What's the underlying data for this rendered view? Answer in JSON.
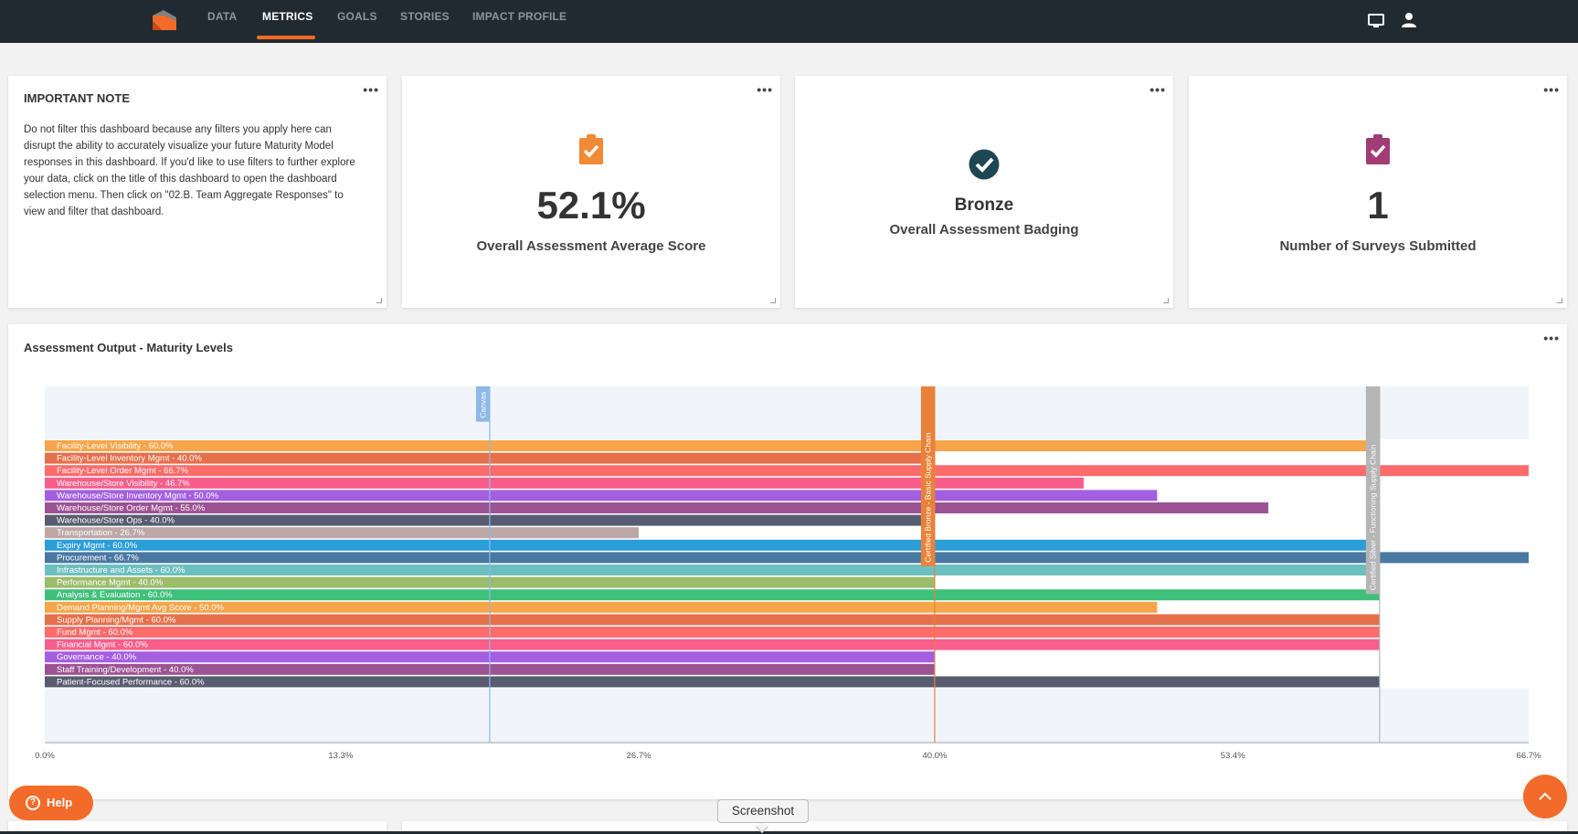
{
  "nav": {
    "tabs": [
      {
        "label": "DATA",
        "active": false
      },
      {
        "label": "METRICS",
        "active": true
      },
      {
        "label": "GOALS",
        "active": false
      },
      {
        "label": "STORIES",
        "active": false
      },
      {
        "label": "IMPACT PROFILE",
        "active": false
      }
    ],
    "icons": [
      "monitor-icon",
      "user-icon"
    ]
  },
  "note_card": {
    "title": "IMPORTANT NOTE",
    "body": "Do not filter this dashboard because any filters you apply here can disrupt the ability to accurately visualize your future Maturity Model responses in this dashboard. If you'd like to use filters to further explore your data, click on the title of this dashboard to open the dashboard selection menu. Then click on \"02.B. Team Aggregate Responses\" to view and filter that dashboard."
  },
  "kpis": [
    {
      "value": "52.1%",
      "label": "Overall Assessment Average Score",
      "icon": "clipboard-check-icon",
      "color": "#f08a34"
    },
    {
      "value": "Bronze",
      "label": "Overall Assessment Badging",
      "icon": "check-circle-icon",
      "color": "#1f4654"
    },
    {
      "value": "1",
      "label": "Number of Surveys Submitted",
      "icon": "clipboard-check-icon",
      "color": "#a13d74"
    }
  ],
  "chart_card": {
    "title": "Assessment Output - Maturity Levels"
  },
  "chart_data": {
    "type": "bar",
    "orientation": "horizontal",
    "x_axis": {
      "min": 0,
      "max": 66.7,
      "ticks": [
        "0.0%",
        "13.3%",
        "26.7%",
        "40.0%",
        "53.4%",
        "66.7%"
      ],
      "tick_values": [
        0,
        13.3,
        26.7,
        40.0,
        53.4,
        66.7
      ]
    },
    "reference_lines": [
      {
        "label": "Canvas",
        "value": 20,
        "color": "#8db8e8"
      },
      {
        "label": "Certified Bronze - Basic Supply Chain",
        "value": 40,
        "color": "#e8823a"
      },
      {
        "label": "Certified Silver - Functioning Supply Chain",
        "value": 60,
        "color": "#b5b5b5"
      }
    ],
    "bars": [
      {
        "label": "Facility-Level Visibility - 60.0%",
        "value": 60.0,
        "color": "#f7a54a"
      },
      {
        "label": "Facility-Level Inventory Mgmt - 40.0%",
        "value": 40.0,
        "color": "#e5704b"
      },
      {
        "label": "Facility-Level Order Mgmt - 66.7%",
        "value": 66.7,
        "color": "#fd6b6b"
      },
      {
        "label": "Warehouse/Store Visibility - 46.7%",
        "value": 46.7,
        "color": "#f95d8b"
      },
      {
        "label": "Warehouse/Store Inventory Mgmt - 50.0%",
        "value": 50.0,
        "color": "#a45ee0"
      },
      {
        "label": "Warehouse/Store Order Mgmt - 55.0%",
        "value": 55.0,
        "color": "#9c5393"
      },
      {
        "label": "Warehouse/Store Ops - 40.0%",
        "value": 40.0,
        "color": "#585c70"
      },
      {
        "label": "Transportation - 26.7%",
        "value": 26.7,
        "color": "#bda7a7"
      },
      {
        "label": "Expiry Mgmt - 60.0%",
        "value": 60.0,
        "color": "#2b9ed8"
      },
      {
        "label": "Procurement - 66.7%",
        "value": 66.7,
        "color": "#4a78a1"
      },
      {
        "label": "Infrastructure and Assets - 60.0%",
        "value": 60.0,
        "color": "#6dbfbf"
      },
      {
        "label": "Performance Mgmt - 40.0%",
        "value": 40.0,
        "color": "#9cbc6c"
      },
      {
        "label": "Analysis & Evaluation - 60.0%",
        "value": 60.0,
        "color": "#3fc07a"
      },
      {
        "label": "Demand Planning/Mgmt Avg Score - 50.0%",
        "value": 50.0,
        "color": "#f7a54a"
      },
      {
        "label": "Supply Planning/Mgmt - 60.0%",
        "value": 60.0,
        "color": "#e5704b"
      },
      {
        "label": "Fund Mgmt - 60.0%",
        "value": 60.0,
        "color": "#fd6b6b"
      },
      {
        "label": "Financial Mgmt - 60.0%",
        "value": 60.0,
        "color": "#f95d8b"
      },
      {
        "label": "Governance - 40.0%",
        "value": 40.0,
        "color": "#a45ee0"
      },
      {
        "label": "Staff Training/Development - 40.0%",
        "value": 40.0,
        "color": "#9c5393"
      },
      {
        "label": "Patient-Focused Performance - 60.0%",
        "value": 60.0,
        "color": "#585c70"
      }
    ],
    "bands": [
      {
        "from_bar": 0,
        "to_bar": 6
      },
      {
        "from_bar": 7,
        "to_bar": 7
      },
      {
        "from_bar": 8,
        "to_bar": 18
      },
      {
        "from_bar": 19,
        "to_bar": 19
      }
    ]
  },
  "help_button": {
    "label": "Help"
  },
  "tooltip": {
    "label": "Screenshot"
  },
  "colors": {
    "accent": "#f26b2a",
    "nav_bg": "#222a31"
  }
}
